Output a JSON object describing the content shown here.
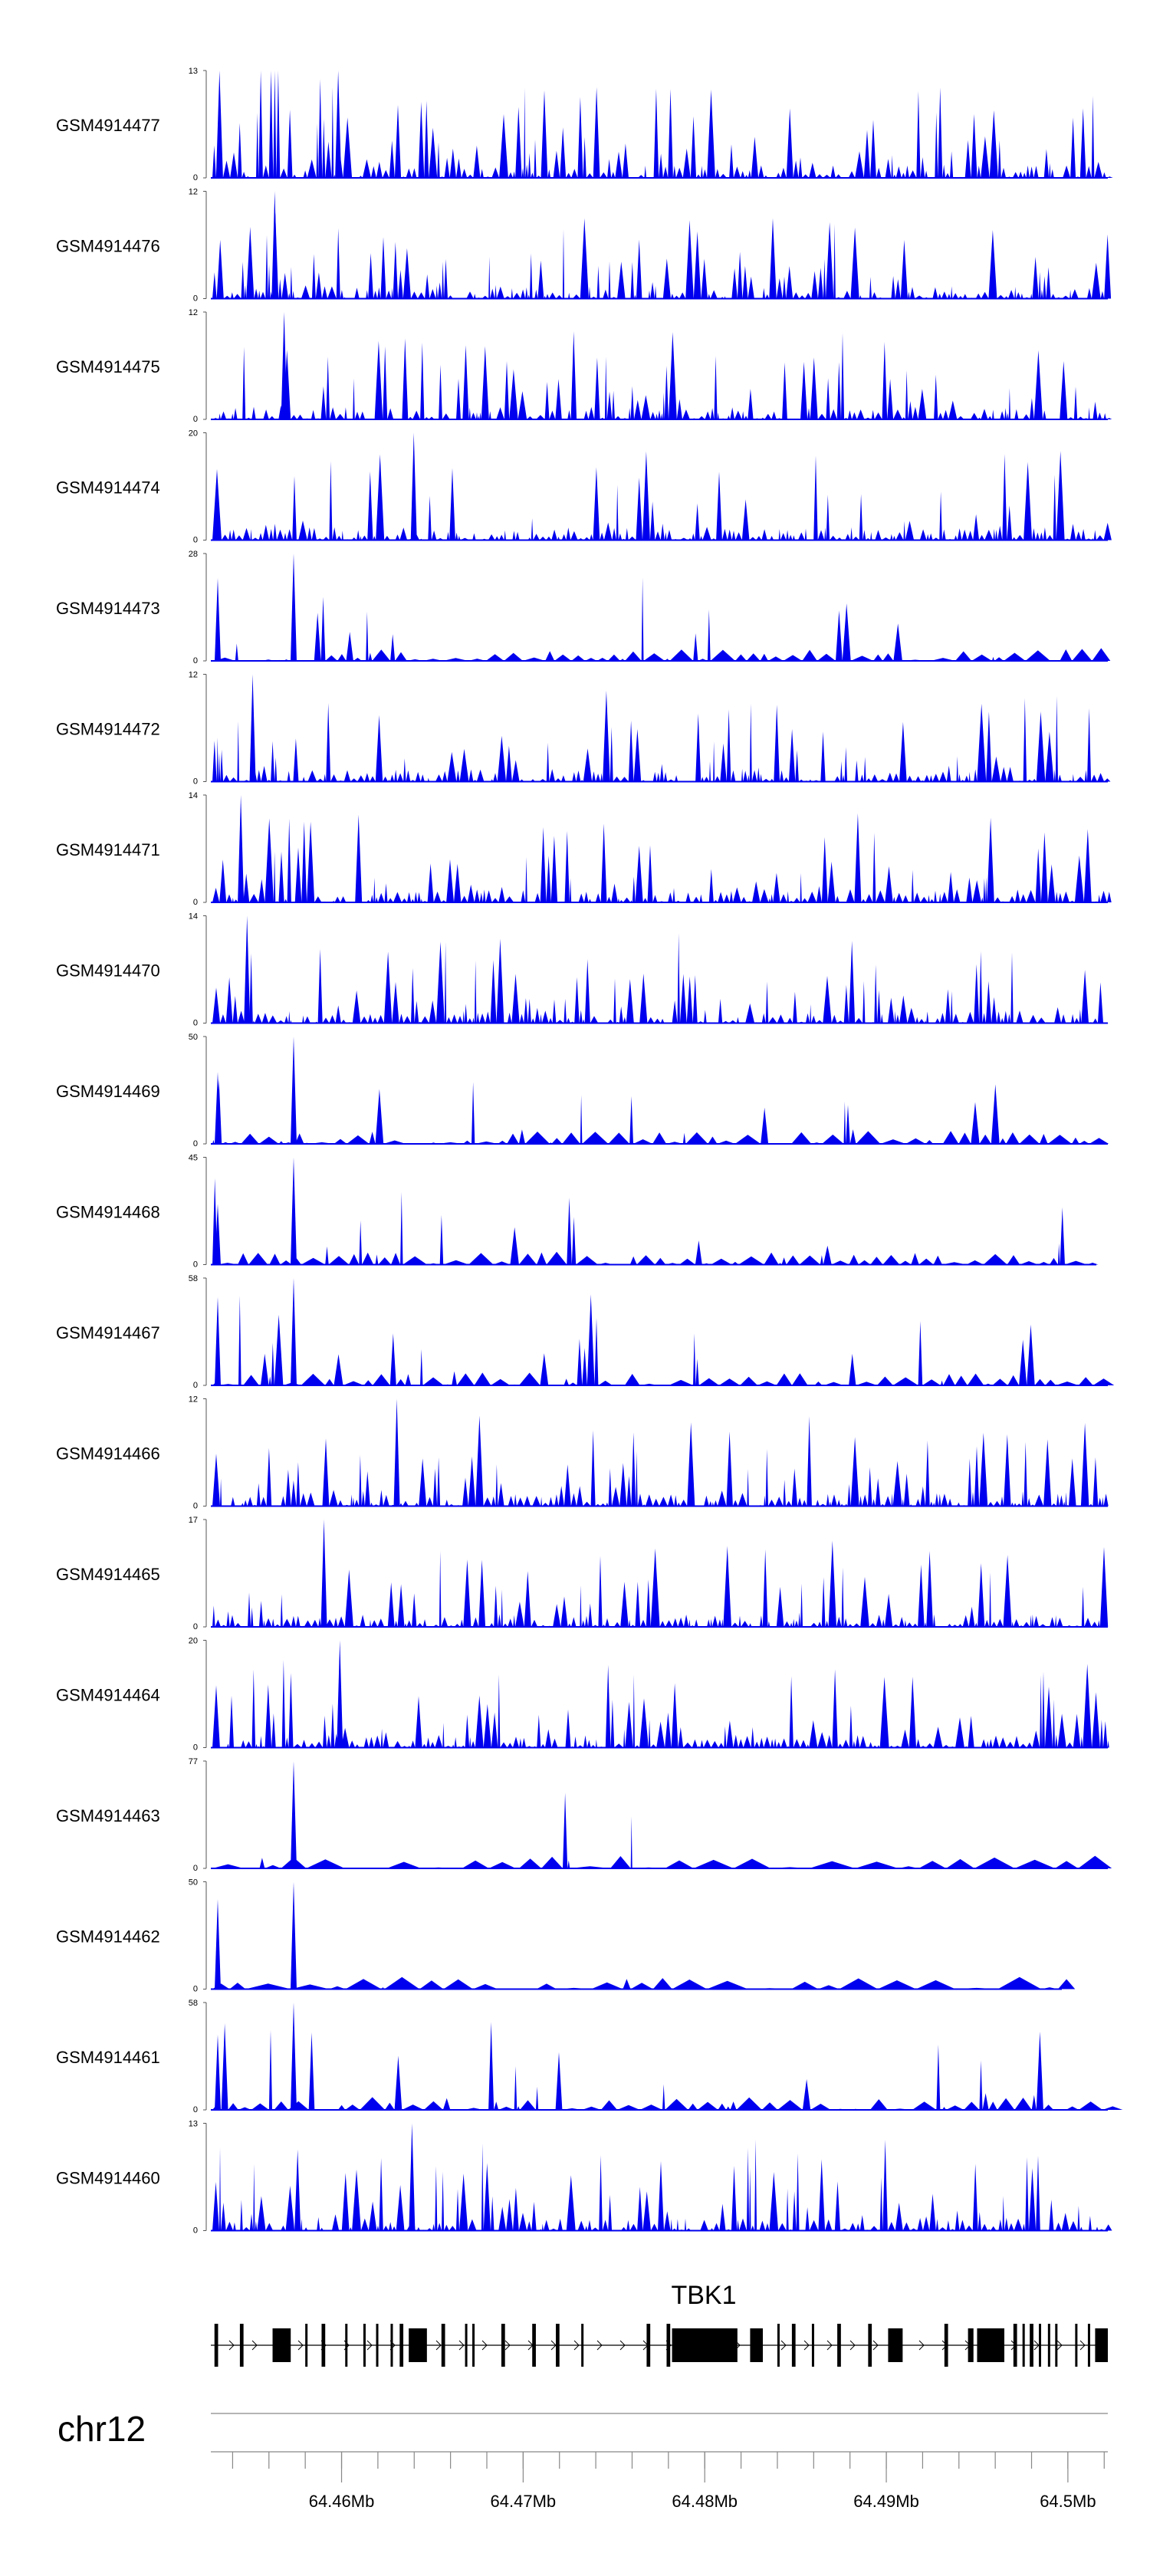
{
  "chart_data": {
    "type": "area",
    "series_color": "#0000ee",
    "x_range_mb": [
      64.4528,
      64.5022
    ],
    "tracks": [
      {
        "name": "GSM4914477",
        "ymax": "13",
        "ymin": "0",
        "peak": 13,
        "seed": 11,
        "profile": "dense_left"
      },
      {
        "name": "GSM4914476",
        "ymax": "12",
        "ymin": "0",
        "peak": 12,
        "seed": 23,
        "profile": "dense"
      },
      {
        "name": "GSM4914475",
        "ymax": "12",
        "ymin": "0",
        "peak": 12,
        "seed": 37,
        "profile": "dense"
      },
      {
        "name": "GSM4914474",
        "ymax": "20",
        "ymin": "0",
        "peak": 20,
        "seed": 41,
        "profile": "medium"
      },
      {
        "name": "GSM4914473",
        "ymax": "28",
        "ymin": "0",
        "peak": 28,
        "seed": 53,
        "profile": "sparse"
      },
      {
        "name": "GSM4914472",
        "ymax": "12",
        "ymin": "0",
        "peak": 12,
        "seed": 67,
        "profile": "dense"
      },
      {
        "name": "GSM4914471",
        "ymax": "14",
        "ymin": "0",
        "peak": 14,
        "seed": 71,
        "profile": "dense"
      },
      {
        "name": "GSM4914470",
        "ymax": "14",
        "ymin": "0",
        "peak": 14,
        "seed": 83,
        "profile": "dense"
      },
      {
        "name": "GSM4914469",
        "ymax": "50",
        "ymin": "0",
        "peak": 50,
        "seed": 97,
        "profile": "sparse_spike"
      },
      {
        "name": "GSM4914468",
        "ymax": "45",
        "ymin": "0",
        "peak": 45,
        "seed": 101,
        "profile": "sparse_spike"
      },
      {
        "name": "GSM4914467",
        "ymax": "58",
        "ymin": "0",
        "peak": 58,
        "seed": 113,
        "profile": "sparse_spike"
      },
      {
        "name": "GSM4914466",
        "ymax": "12",
        "ymin": "0",
        "peak": 12,
        "seed": 127,
        "profile": "dense"
      },
      {
        "name": "GSM4914465",
        "ymax": "17",
        "ymin": "0",
        "peak": 17,
        "seed": 131,
        "profile": "medium"
      },
      {
        "name": "GSM4914464",
        "ymax": "20",
        "ymin": "0",
        "peak": 20,
        "seed": 149,
        "profile": "medium"
      },
      {
        "name": "GSM4914463",
        "ymax": "77",
        "ymin": "0",
        "peak": 77,
        "seed": 157,
        "profile": "very_sparse"
      },
      {
        "name": "GSM4914462",
        "ymax": "50",
        "ymin": "0",
        "peak": 50,
        "seed": 163,
        "profile": "very_sparse"
      },
      {
        "name": "GSM4914461",
        "ymax": "58",
        "ymin": "0",
        "peak": 58,
        "seed": 173,
        "profile": "sparse_spike"
      },
      {
        "name": "GSM4914460",
        "ymax": "13",
        "ymin": "0",
        "peak": 13,
        "seed": 181,
        "profile": "dense"
      }
    ],
    "gene": {
      "name": "TBK1",
      "strand": "+",
      "exons_mb": [
        [
          64.453,
          64.4532
        ],
        [
          64.4544,
          64.4546
        ],
        [
          64.4562,
          64.4572
        ],
        [
          64.458,
          64.4581
        ],
        [
          64.4589,
          64.4591
        ],
        [
          64.4602,
          64.4603
        ],
        [
          64.4612,
          64.4613
        ],
        [
          64.4619,
          64.462
        ],
        [
          64.4627,
          64.4628
        ],
        [
          64.4632,
          64.4634
        ],
        [
          64.4637,
          64.4647
        ],
        [
          64.4655,
          64.4657
        ],
        [
          64.4668,
          64.4669
        ],
        [
          64.4672,
          64.4673
        ],
        [
          64.4688,
          64.469
        ],
        [
          64.4705,
          64.4707
        ],
        [
          64.4718,
          64.472
        ],
        [
          64.4732,
          64.4733
        ],
        [
          64.4768,
          64.477
        ],
        [
          64.4779,
          64.4781
        ],
        [
          64.4782,
          64.4818
        ],
        [
          64.4825,
          64.4832
        ],
        [
          64.484,
          64.4841
        ],
        [
          64.4848,
          64.485
        ],
        [
          64.4859,
          64.486
        ],
        [
          64.4873,
          64.4875
        ],
        [
          64.489,
          64.4892
        ],
        [
          64.4901,
          64.4909
        ],
        [
          64.4932,
          64.4934
        ],
        [
          64.4945,
          64.4948
        ],
        [
          64.495,
          64.4965
        ],
        [
          64.497,
          64.4972
        ],
        [
          64.4975,
          64.4976
        ],
        [
          64.4979,
          64.4981
        ],
        [
          64.4984,
          64.4985
        ],
        [
          64.4989,
          64.499
        ],
        [
          64.4993,
          64.4994
        ],
        [
          64.5004,
          64.5005
        ],
        [
          64.5011,
          64.5012
        ],
        [
          64.5015,
          64.5022
        ]
      ]
    },
    "axis": {
      "chromosome": "chr12",
      "major_ticks_mb": [
        64.46,
        64.47,
        64.48,
        64.49,
        64.5
      ],
      "major_labels": [
        "64.46Mb",
        "64.47Mb",
        "64.48Mb",
        "64.49Mb",
        "64.5Mb"
      ],
      "minor_step_mb": 0.002
    }
  }
}
